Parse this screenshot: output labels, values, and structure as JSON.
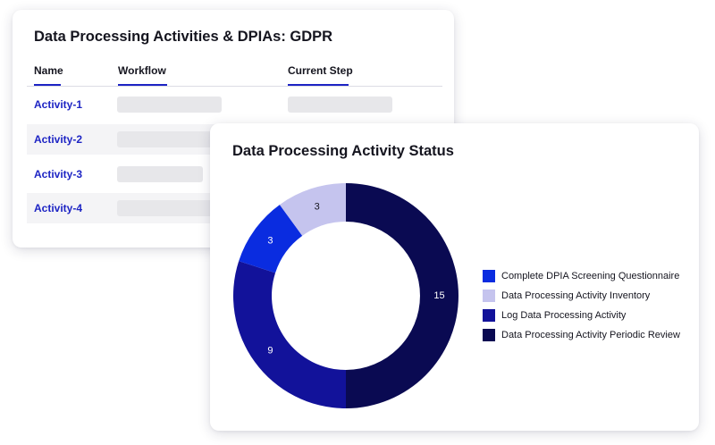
{
  "processing_table": {
    "title": "Data Processing Activities & DPIAs: GDPR",
    "columns": [
      "Name",
      "Workflow",
      "Current Step"
    ],
    "rows": [
      {
        "name": "Activity-1"
      },
      {
        "name": "Activity-2"
      },
      {
        "name": "Activity-3"
      },
      {
        "name": "Activity-4"
      }
    ]
  },
  "status_panel": {
    "title": "Data Processing Activity Status"
  },
  "colors": {
    "accent": "#1d24c4",
    "complete_dpia": "#0a2ce0",
    "inventory": "#c5c4ee",
    "log_activity": "#12129a",
    "periodic_review": "#0a0a52"
  },
  "chart_data": {
    "type": "pie",
    "donut": true,
    "title": "Data Processing Activity Status",
    "categories": [
      "Complete DPIA Screening Questionnaire",
      "Data Processing Activity Inventory",
      "Log Data Processing Activity",
      "Data Processing Activity Periodic Review"
    ],
    "drawing_order": [
      "Data Processing Activity Periodic Review",
      "Log Data Processing Activity",
      "Complete DPIA Screening Questionnaire",
      "Data Processing Activity Inventory"
    ],
    "values": [
      3,
      3,
      9,
      15
    ],
    "legend_position": "right"
  }
}
